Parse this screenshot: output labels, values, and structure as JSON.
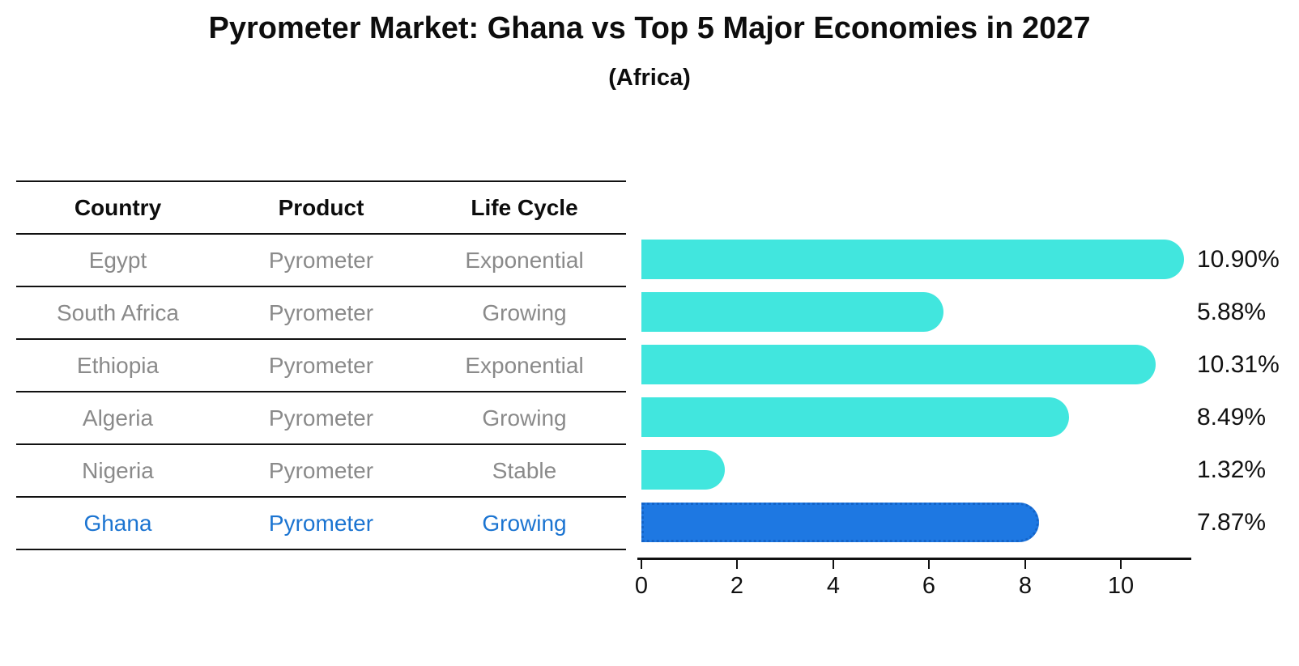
{
  "title": "Pyrometer Market: Ghana vs Top 5 Major Economies in 2027",
  "subtitle": "(Africa)",
  "table": {
    "headers": [
      "Country",
      "Product",
      "Life Cycle"
    ],
    "rows": [
      {
        "country": "Egypt",
        "product": "Pyrometer",
        "life_cycle": "Exponential",
        "highlight": false
      },
      {
        "country": "South Africa",
        "product": "Pyrometer",
        "life_cycle": "Growing",
        "highlight": false
      },
      {
        "country": "Ethiopia",
        "product": "Pyrometer",
        "life_cycle": "Exponential",
        "highlight": false
      },
      {
        "country": "Algeria",
        "product": "Pyrometer",
        "life_cycle": "Growing",
        "highlight": false
      },
      {
        "country": "Nigeria",
        "product": "Pyrometer",
        "life_cycle": "Stable",
        "highlight": false
      },
      {
        "country": "Ghana",
        "product": "Pyrometer",
        "life_cycle": "Growing",
        "highlight": true
      }
    ]
  },
  "chart_data": {
    "type": "bar",
    "orientation": "horizontal",
    "title": "Pyrometer Market: Ghana vs Top 5 Major Economies in 2027",
    "subtitle": "(Africa)",
    "categories": [
      "Egypt",
      "South Africa",
      "Ethiopia",
      "Algeria",
      "Nigeria",
      "Ghana"
    ],
    "values": [
      10.9,
      5.88,
      10.31,
      8.49,
      1.32,
      7.87
    ],
    "value_labels": [
      "10.90%",
      "5.88%",
      "10.31%",
      "8.49%",
      "1.32%",
      "7.87%"
    ],
    "highlight_index": 5,
    "x_ticks": [
      0,
      2,
      4,
      6,
      8,
      10
    ],
    "xlim": [
      0,
      11.5
    ],
    "grid": false,
    "legend": false
  },
  "colors": {
    "bar": "#41E6DE",
    "highlight_bar": "#1E78E2",
    "highlight_border": "#1464C8",
    "row_text": "#8a8a8a",
    "highlight_text": "#1b74d1",
    "axis": "#111111"
  }
}
